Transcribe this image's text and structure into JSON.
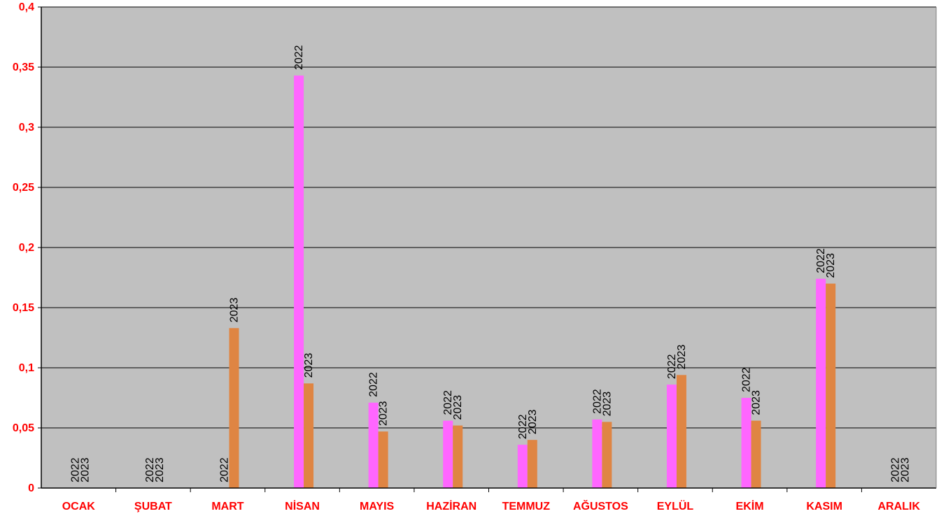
{
  "colors": {
    "plot_bg": "#c0c0c0",
    "grid": "#000000",
    "axis_text": "#ff0000",
    "series_2022": "#ff66ff",
    "series_2023": "#df8543"
  },
  "chart_data": {
    "type": "bar",
    "title": "",
    "xlabel": "",
    "ylabel": "",
    "ylim": [
      0,
      0.4
    ],
    "grid": true,
    "legend": "none",
    "y_ticks": [
      "0",
      "0,05",
      "0,1",
      "0,15",
      "0,2",
      "0,25",
      "0,3",
      "0,35",
      "0,4"
    ],
    "categories": [
      "OCAK",
      "ŞUBAT",
      "MART",
      "NİSAN",
      "MAYIS",
      "HAZİRAN",
      "TEMMUZ",
      "AĞUSTOS",
      "EYLÜL",
      "EKİM",
      "KASIM",
      "ARALIK"
    ],
    "series": [
      {
        "name": "2022",
        "values": [
          0,
          0,
          0,
          0.343,
          0.071,
          0.056,
          0.036,
          0.057,
          0.086,
          0.075,
          0.174,
          0
        ]
      },
      {
        "name": "2023",
        "values": [
          0,
          0,
          0.133,
          0.087,
          0.047,
          0.052,
          0.04,
          0.055,
          0.094,
          0.056,
          0.17,
          0
        ]
      }
    ],
    "data_labels": [
      [
        "2022",
        "2022",
        "2022",
        "2022",
        "2022",
        "2022",
        "2022",
        "2022",
        "2022",
        "2022",
        "2022",
        "2022"
      ],
      [
        "2023",
        "2023",
        "2023",
        "2023",
        "2023",
        "2023",
        "2023",
        "2023",
        "2023",
        "2023",
        "2023",
        "2023"
      ]
    ],
    "data_label_visible": [
      [
        true,
        true,
        true,
        true,
        true,
        true,
        true,
        true,
        true,
        true,
        true,
        true
      ],
      [
        true,
        true,
        true,
        true,
        true,
        true,
        true,
        true,
        true,
        true,
        true,
        true
      ]
    ]
  }
}
